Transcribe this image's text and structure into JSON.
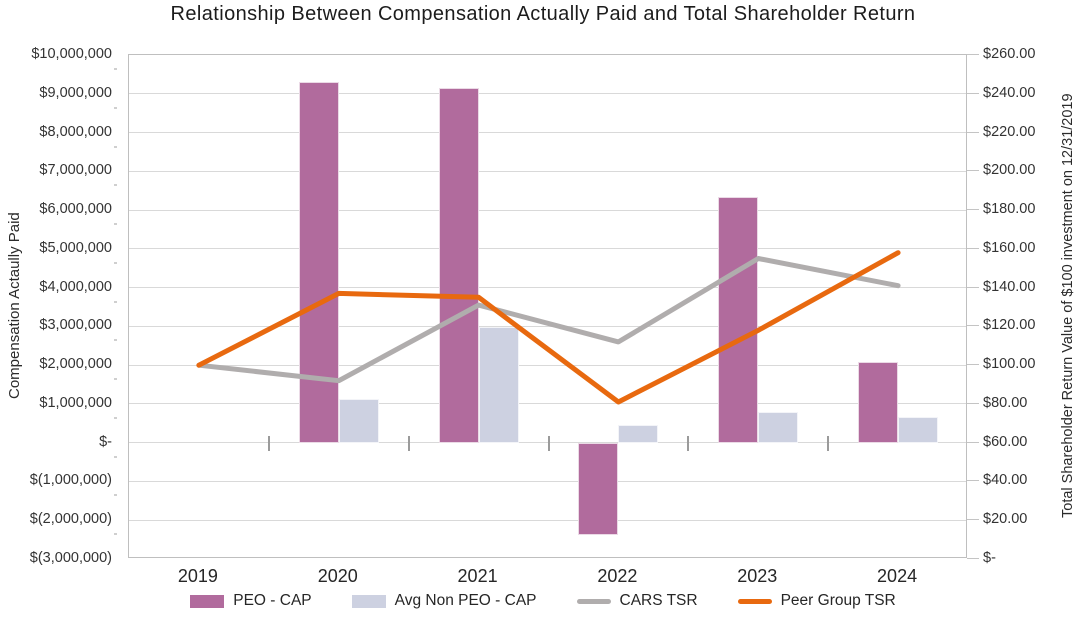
{
  "title": "Relationship Between Compensation Actually Paid and Total Shareholder Return",
  "left_axis": {
    "title": "Compensation Actaully Paid",
    "tick_labels": [
      "$10,000,000",
      "$9,000,000",
      "$8,000,000",
      "$7,000,000",
      "$6,000,000",
      "$5,000,000",
      "$4,000,000",
      "$3,000,000",
      "$2,000,000",
      "$1,000,000",
      "$-",
      "$(1,000,000)",
      "$(2,000,000)",
      "$(3,000,000)"
    ]
  },
  "right_axis": {
    "title": "Total Shareholder Return Value of $100 investment on 12/31/2019",
    "tick_labels": [
      "$260.00",
      "$240.00",
      "$220.00",
      "$200.00",
      "$180.00",
      "$160.00",
      "$140.00",
      "$120.00",
      "$100.00",
      "$80.00",
      "$60.00",
      "$40.00",
      "$20.00",
      "$-"
    ]
  },
  "colors": {
    "grid": "#d9d9d9",
    "plot_border": "#bfbfbf",
    "peo_bar": "#b16b9d",
    "avg_non_peo_bar": "#cdd1e1",
    "cars_line": "#b0adad",
    "peer_group_line": "#e8690f"
  },
  "chart_data": {
    "type": "combo-bar-line",
    "title": "Relationship Between Compensation Actually Paid and Total Shareholder Return",
    "categories": [
      "2019",
      "2020",
      "2021",
      "2022",
      "2023",
      "2024"
    ],
    "series": [
      {
        "name": "PEO - CAP",
        "type": "bar",
        "axis": "left",
        "color": "#b16b9d",
        "values": [
          null,
          9310000,
          9160000,
          -2390000,
          6330000,
          2070000
        ]
      },
      {
        "name": "Avg Non PEO - CAP",
        "type": "bar",
        "axis": "left",
        "color": "#cdd1e1",
        "values": [
          null,
          1120000,
          2990000,
          450000,
          800000,
          670000
        ]
      },
      {
        "name": "CARS TSR",
        "type": "line",
        "axis": "right",
        "color": "#b0adad",
        "values": [
          100,
          92,
          131,
          112,
          155,
          141
        ]
      },
      {
        "name": "Peer Group TSR",
        "type": "line",
        "axis": "right",
        "color": "#e8690f",
        "values": [
          100,
          137,
          135,
          81,
          118,
          158
        ]
      }
    ],
    "left_ylabel": "Compensation Actaully Paid",
    "right_ylabel": "Total Shareholder Return Value of $100 investment on 12/31/2019",
    "left_ylim": [
      -3000000,
      10000000
    ],
    "left_tick_step": 1000000,
    "right_ylim": [
      0,
      260
    ],
    "right_tick_step": 20,
    "grid": true,
    "legend_position": "bottom"
  }
}
